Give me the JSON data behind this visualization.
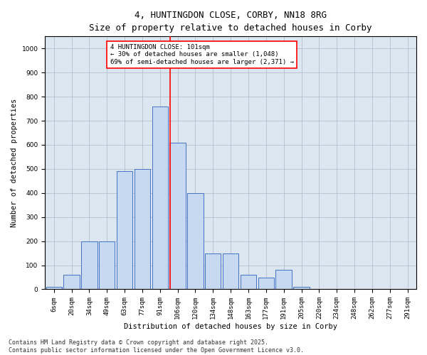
{
  "title1": "4, HUNTINGDON CLOSE, CORBY, NN18 8RG",
  "title2": "Size of property relative to detached houses in Corby",
  "xlabel": "Distribution of detached houses by size in Corby",
  "ylabel": "Number of detached properties",
  "categories": [
    "6sqm",
    "20sqm",
    "34sqm",
    "49sqm",
    "63sqm",
    "77sqm",
    "91sqm",
    "106sqm",
    "120sqm",
    "134sqm",
    "148sqm",
    "163sqm",
    "177sqm",
    "191sqm",
    "205sqm",
    "220sqm",
    "234sqm",
    "248sqm",
    "262sqm",
    "277sqm",
    "291sqm"
  ],
  "values": [
    10,
    60,
    200,
    200,
    490,
    500,
    760,
    610,
    400,
    150,
    150,
    60,
    50,
    80,
    10,
    0,
    0,
    0,
    0,
    0,
    0
  ],
  "bar_color": "#c6d9f1",
  "bar_edge_color": "#4472c4",
  "vline_color": "red",
  "annotation_text": "4 HUNTINGDON CLOSE: 101sqm\n← 30% of detached houses are smaller (1,048)\n69% of semi-detached houses are larger (2,371) →",
  "annotation_box_color": "white",
  "annotation_edge_color": "red",
  "ylim": [
    0,
    1050
  ],
  "yticks": [
    0,
    100,
    200,
    300,
    400,
    500,
    600,
    700,
    800,
    900,
    1000
  ],
  "grid_color": "#b0b8c8",
  "background_color": "#dce6f1",
  "footnote": "Contains HM Land Registry data © Crown copyright and database right 2025.\nContains public sector information licensed under the Open Government Licence v3.0.",
  "title_fontsize": 9,
  "subtitle_fontsize": 8.5,
  "axis_fontsize": 7.5,
  "tick_fontsize": 6.5,
  "footnote_fontsize": 6,
  "annotation_fontsize": 6.5
}
